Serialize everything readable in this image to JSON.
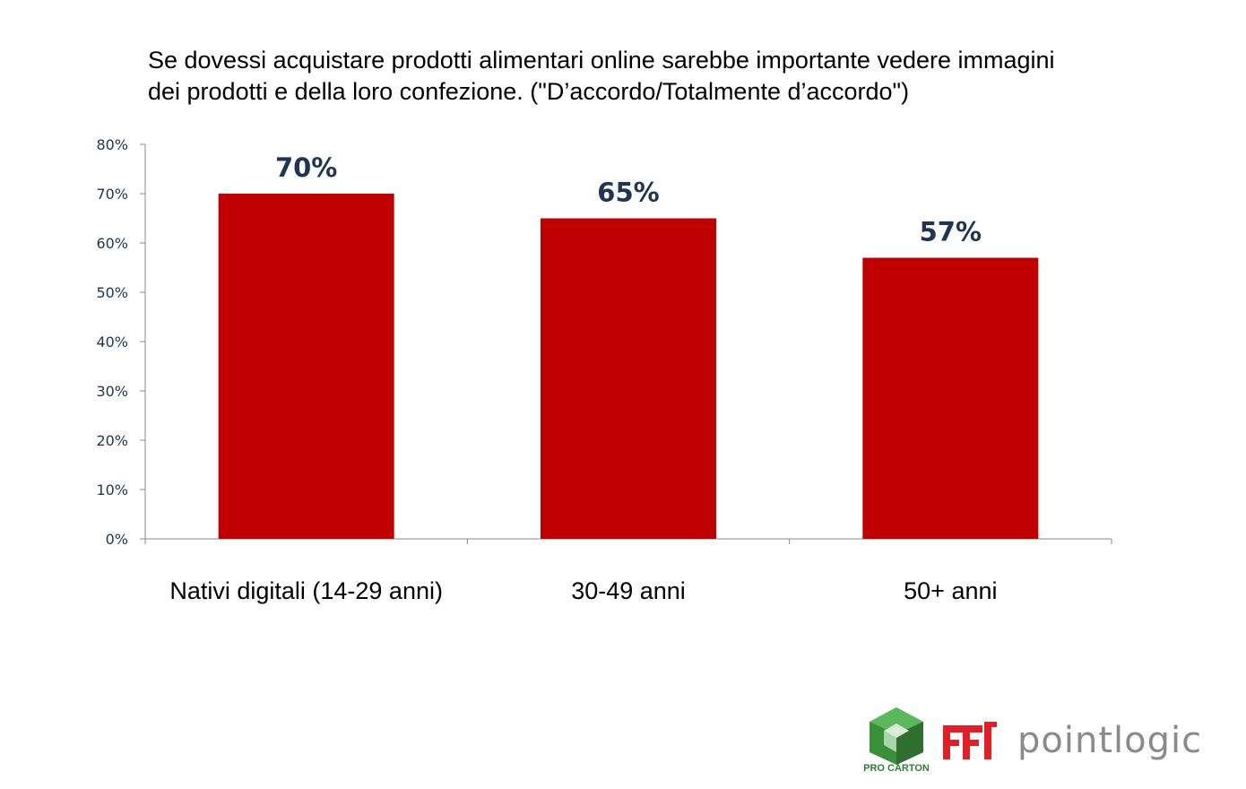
{
  "title": {
    "line1": "Se dovessi acquistare prodotti alimentari online sarebbe importante vedere immagini",
    "line2": "dei prodotti e della loro confezione. (\"D’accordo/Totalmente d’accordo\")"
  },
  "chart_data": {
    "type": "bar",
    "categories": [
      "Nativi digitali (14-29 anni)",
      "30-49 anni",
      "50+ anni"
    ],
    "values": [
      70,
      65,
      57
    ],
    "data_labels": [
      "70%",
      "65%",
      "57%"
    ],
    "ylim": [
      0,
      80
    ],
    "yticks": [
      0,
      10,
      20,
      30,
      40,
      50,
      60,
      70,
      80
    ],
    "ytick_labels": [
      "0%",
      "10%",
      "20%",
      "30%",
      "40%",
      "50%",
      "60%",
      "70%",
      "80%"
    ],
    "bar_color": "#c00000",
    "data_label_color": "#1f3552",
    "grid": false,
    "legend": "none"
  },
  "logos": {
    "procarton_text": "PRO CARTON",
    "pointlogic_text": "pointlogic"
  }
}
